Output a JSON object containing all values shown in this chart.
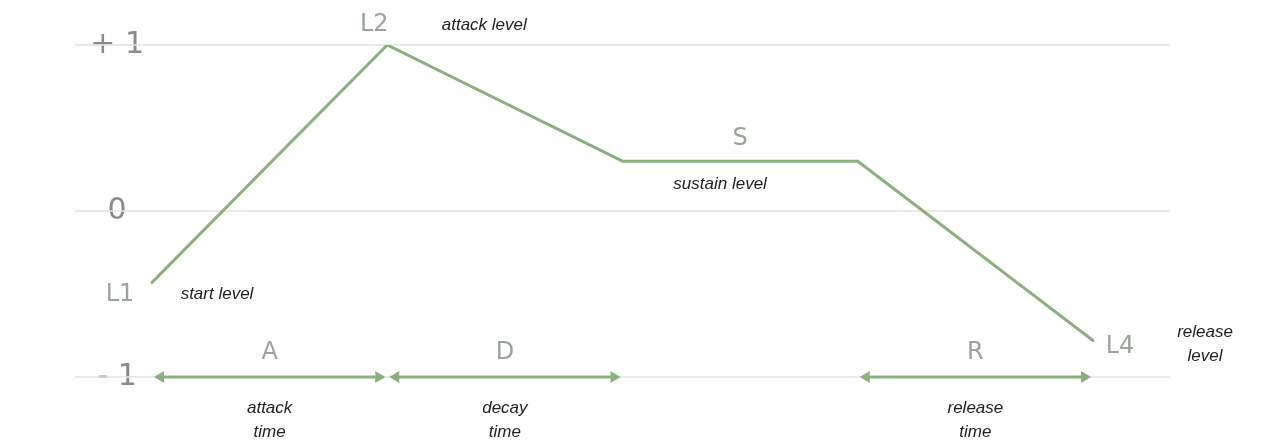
{
  "chart_data": {
    "type": "line",
    "categories": [
      null,
      null,
      null,
      null,
      null
    ],
    "series": [
      {
        "color": "#88b27c",
        "values": [
          -0.43,
          1,
          0.3,
          0.3,
          -0.78
        ]
      }
    ],
    "ylim": [
      -1,
      1
    ],
    "yticks": [
      {
        "value": 1,
        "label": "+ 1"
      },
      0,
      {
        "value": -1,
        "label": "- 1"
      }
    ],
    "tick_labels": "y",
    "grid": "y",
    "legend": false,
    "marker": "none",
    "line_style": "solid",
    "annotations": [
      "L1",
      "start level",
      "L2",
      "attack level",
      "S",
      "sustain level",
      "L4",
      "release\nlevel",
      "A",
      "attack\ntime",
      "D",
      "decay\ntime",
      "R",
      "release\ntime"
    ]
  }
}
